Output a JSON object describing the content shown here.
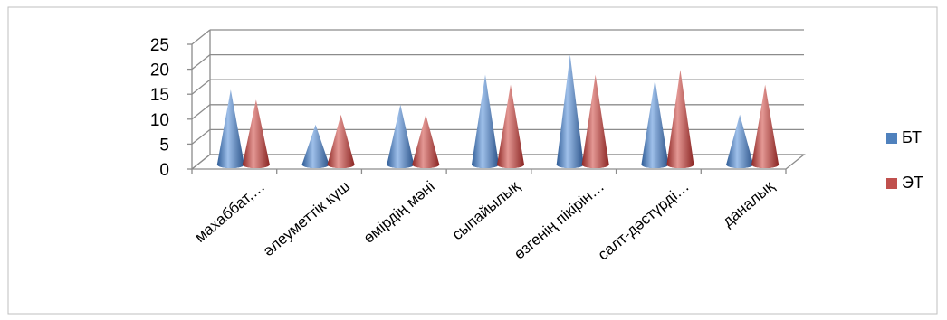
{
  "chart_data": {
    "type": "bar",
    "style": "3d-cone",
    "categories": [
      "махаббат,…",
      "әлеуметтік күш",
      "өмірдің мәні",
      "сыпайылық",
      "өзгенің пікірін…",
      "салт-дәстүрді…",
      "даналық"
    ],
    "series": [
      {
        "name": "БТ",
        "color": "#4f81bd",
        "values": [
          15,
          8,
          12,
          18,
          22,
          17,
          10
        ]
      },
      {
        "name": "ЭТ",
        "color": "#c0504d",
        "values": [
          13,
          10,
          10,
          16,
          18,
          19,
          16
        ]
      }
    ],
    "yticks": [
      "0",
      "5",
      "10",
      "15",
      "20",
      "25"
    ],
    "ylim": [
      0,
      25
    ],
    "grid": true,
    "legend": "right"
  }
}
